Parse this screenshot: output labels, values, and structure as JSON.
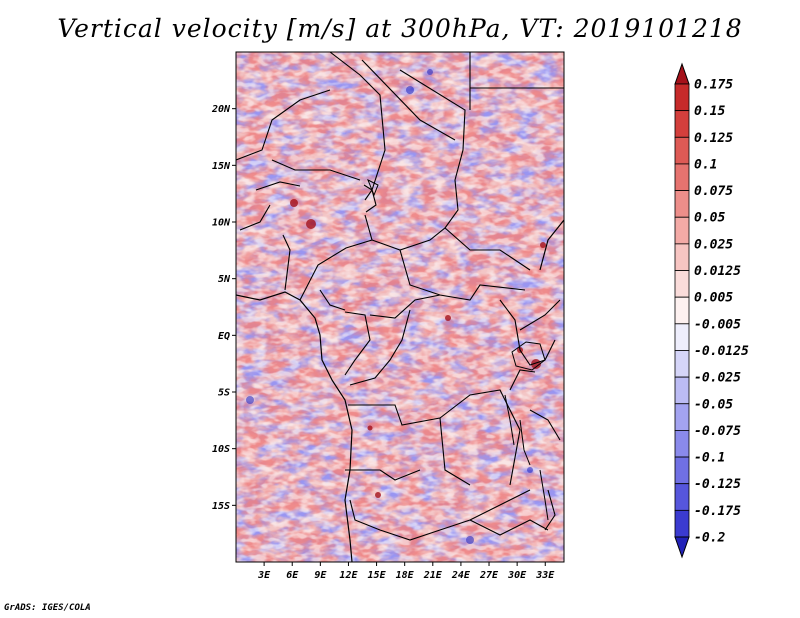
{
  "title": "Vertical velocity [m/s] at 300hPa, VT: 2019101218",
  "footer": "GrADS: IGES/COLA",
  "map": {
    "lon_range": [
      0,
      35
    ],
    "lat_range": [
      -20,
      25
    ],
    "lat_ticks": [
      {
        "value": 20,
        "label": "20N"
      },
      {
        "value": 15,
        "label": "15N"
      },
      {
        "value": 10,
        "label": "10N"
      },
      {
        "value": 5,
        "label": "5N"
      },
      {
        "value": 0,
        "label": "EQ"
      },
      {
        "value": -5,
        "label": "5S"
      },
      {
        "value": -10,
        "label": "10S"
      },
      {
        "value": -15,
        "label": "15S"
      }
    ],
    "lon_ticks": [
      {
        "value": 3,
        "label": "3E"
      },
      {
        "value": 6,
        "label": "6E"
      },
      {
        "value": 9,
        "label": "9E"
      },
      {
        "value": 12,
        "label": "12E"
      },
      {
        "value": 15,
        "label": "15E"
      },
      {
        "value": 18,
        "label": "18E"
      },
      {
        "value": 21,
        "label": "21E"
      },
      {
        "value": 24,
        "label": "24E"
      },
      {
        "value": 27,
        "label": "27E"
      },
      {
        "value": 30,
        "label": "30E"
      },
      {
        "value": 33,
        "label": "33E"
      }
    ]
  },
  "colorbar": {
    "levels": [
      {
        "label": "0.175",
        "color": "#b5121b"
      },
      {
        "label": "0.15",
        "color": "#c62a2a"
      },
      {
        "label": "0.125",
        "color": "#d33f3c"
      },
      {
        "label": "0.1",
        "color": "#de5a55"
      },
      {
        "label": "0.075",
        "color": "#e6736f"
      },
      {
        "label": "0.05",
        "color": "#ed8e8a"
      },
      {
        "label": "0.025",
        "color": "#f3aaa6"
      },
      {
        "label": "0.0125",
        "color": "#f7c5c2"
      },
      {
        "label": "0.005",
        "color": "#fadcda"
      },
      {
        "label": "-0.005",
        "color": "#fdf1f0"
      },
      {
        "label": "-0.0125",
        "color": "#eeeefc"
      },
      {
        "label": "-0.025",
        "color": "#d5d5f8"
      },
      {
        "label": "-0.05",
        "color": "#bcbcf4"
      },
      {
        "label": "-0.075",
        "color": "#a3a3f0"
      },
      {
        "label": "-0.1",
        "color": "#8a8aeb"
      },
      {
        "label": "-0.125",
        "color": "#7070e4"
      },
      {
        "label": "-0.175",
        "color": "#5656dc"
      },
      {
        "label": "-0.2",
        "color": "#3b3bd0"
      }
    ],
    "top_color": "#a5111a",
    "bottom_color": "#2222b8"
  }
}
